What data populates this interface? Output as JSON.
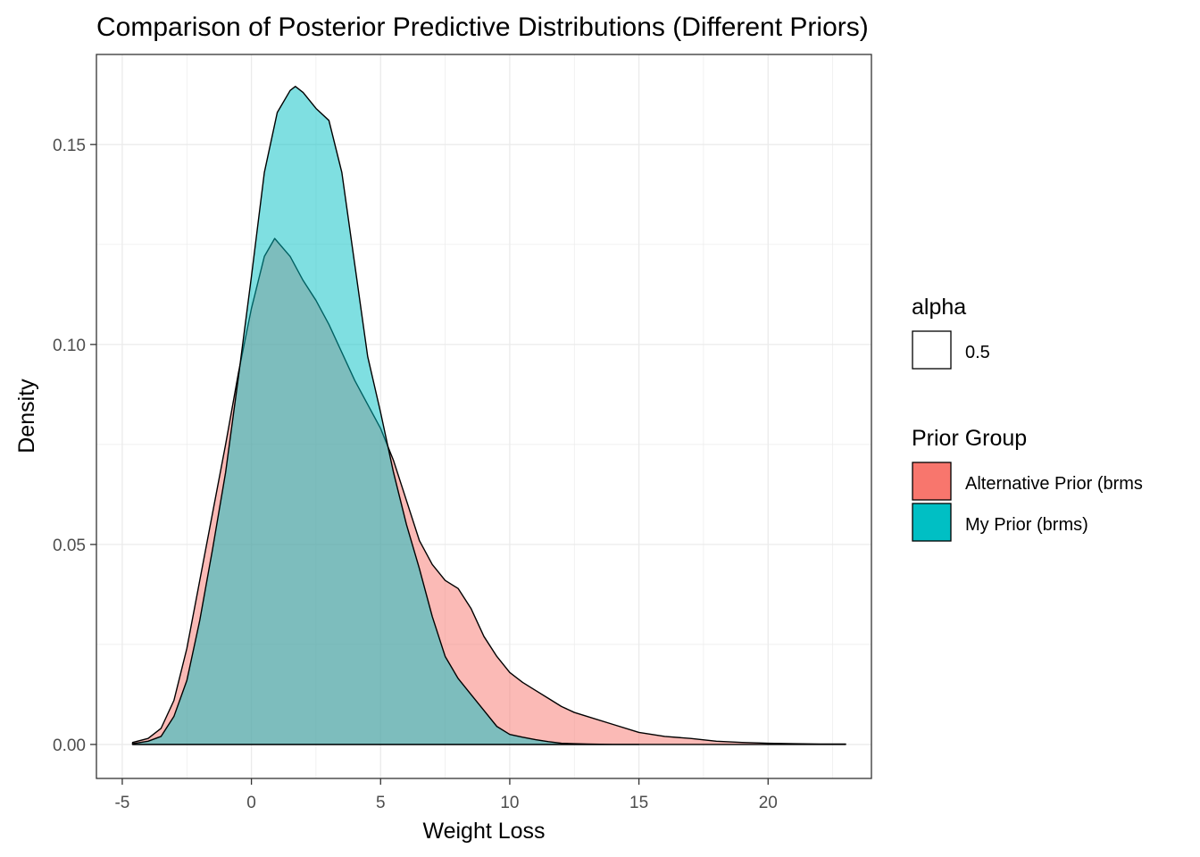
{
  "chart_data": {
    "type": "area",
    "title": "Comparison of Posterior Predictive Distributions (Different Priors)",
    "xlabel": "Weight Loss",
    "ylabel": "Density",
    "xlim": [
      -6,
      24
    ],
    "ylim": [
      -0.0085,
      0.1725
    ],
    "xticks": [
      -5,
      0,
      5,
      10,
      15,
      20
    ],
    "xtick_labels": [
      "-5",
      "0",
      "5",
      "10",
      "15",
      "20"
    ],
    "yticks": [
      0.0,
      0.05,
      0.1,
      0.15
    ],
    "ytick_labels": [
      "0.00",
      "0.05",
      "0.10",
      "0.15"
    ],
    "grid": true,
    "legend_position": "right",
    "legends": {
      "alpha": {
        "title": "alpha",
        "entries": [
          {
            "label": "0.5"
          }
        ]
      },
      "fill": {
        "title": "Prior Group",
        "entries": [
          {
            "label": "Alternative Prior (brms",
            "color": "#F8766D"
          },
          {
            "label": "My Prior (brms)",
            "color": "#00BFC4"
          }
        ]
      }
    },
    "series": [
      {
        "name": "Alternative Prior (brms",
        "color": "#F8766D",
        "alpha": 0.5,
        "x": [
          -4.6,
          -4.0,
          -3.5,
          -3.0,
          -2.5,
          -2.0,
          -1.5,
          -1.0,
          -0.5,
          0.0,
          0.5,
          0.9,
          1.5,
          2.0,
          2.5,
          3.0,
          3.5,
          4.0,
          4.5,
          5.0,
          5.5,
          6.0,
          6.5,
          7.0,
          7.5,
          8.0,
          8.5,
          9.0,
          9.5,
          10.0,
          10.5,
          11.0,
          11.5,
          12.0,
          12.5,
          13.0,
          14.0,
          15.0,
          16.0,
          17.0,
          18.0,
          19.0,
          20.0,
          21.0,
          22.0,
          23.0
        ],
        "y": [
          0.0005,
          0.0015,
          0.004,
          0.011,
          0.024,
          0.041,
          0.058,
          0.075,
          0.093,
          0.109,
          0.122,
          0.1265,
          0.122,
          0.116,
          0.111,
          0.105,
          0.098,
          0.091,
          0.085,
          0.079,
          0.071,
          0.061,
          0.051,
          0.045,
          0.041,
          0.039,
          0.034,
          0.027,
          0.022,
          0.018,
          0.0155,
          0.0135,
          0.0115,
          0.0095,
          0.008,
          0.007,
          0.005,
          0.003,
          0.002,
          0.0015,
          0.0008,
          0.0005,
          0.0003,
          0.0002,
          0.0001,
          0.0001
        ]
      },
      {
        "name": "My Prior (brms)",
        "color": "#00BFC4",
        "alpha": 0.5,
        "x": [
          -4.6,
          -4.0,
          -3.5,
          -3.0,
          -2.5,
          -2.0,
          -1.5,
          -1.0,
          -0.5,
          0.0,
          0.5,
          1.0,
          1.5,
          1.7,
          2.0,
          2.5,
          3.0,
          3.5,
          4.0,
          4.5,
          5.0,
          5.5,
          6.0,
          6.5,
          7.0,
          7.5,
          8.0,
          8.5,
          9.0,
          9.5,
          10.0,
          10.5,
          11.0,
          11.5,
          12.0,
          12.5,
          13.0,
          14.0,
          15.0
        ],
        "y": [
          0.0002,
          0.0008,
          0.002,
          0.007,
          0.016,
          0.031,
          0.049,
          0.068,
          0.092,
          0.117,
          0.143,
          0.158,
          0.1635,
          0.1645,
          0.163,
          0.159,
          0.156,
          0.143,
          0.12,
          0.097,
          0.083,
          0.068,
          0.055,
          0.044,
          0.032,
          0.022,
          0.0165,
          0.0125,
          0.0085,
          0.0045,
          0.0025,
          0.0018,
          0.0012,
          0.0007,
          0.0003,
          0.0002,
          0.0001,
          0.0,
          0.0
        ]
      }
    ]
  }
}
